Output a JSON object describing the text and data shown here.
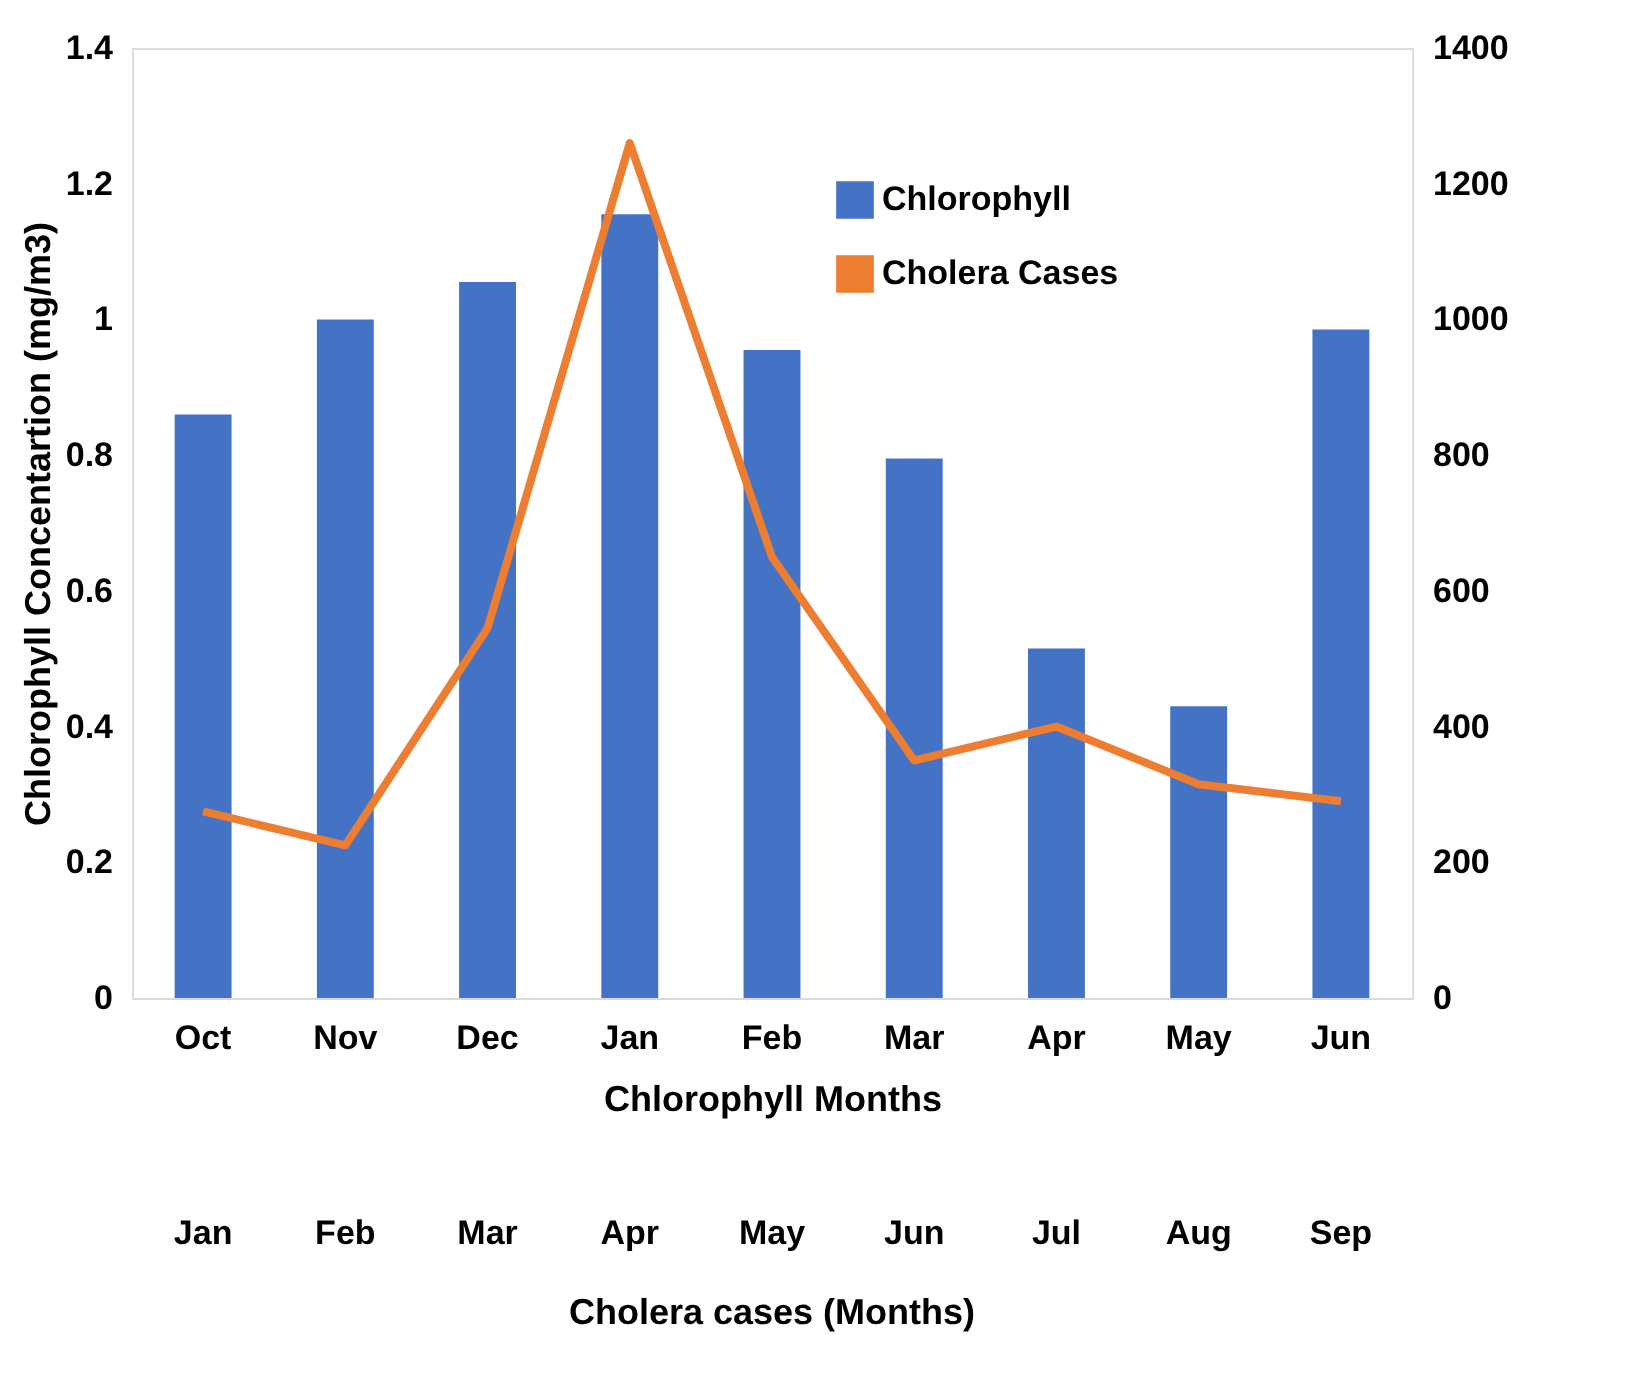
{
  "chart_data": {
    "type": "bar",
    "categories": [
      "Oct",
      "Nov",
      "Dec",
      "Jan",
      "Feb",
      "Mar",
      "Apr",
      "May",
      "Jun"
    ],
    "xlabel": "Chlorophyll Months",
    "ylabel": "Chlorophyll Concentartion (mg/m3)",
    "x2label": "Cholera cases (Months)",
    "annotations": [
      "Jan",
      "Feb",
      "Mar",
      "Apr",
      "May",
      "Jun",
      "Jul",
      "Aug",
      "Sep"
    ],
    "series": [
      {
        "name": "Chlorophyll",
        "color": "#4472c4",
        "values": [
          0.86,
          1.0,
          1.055,
          1.155,
          0.955,
          0.795,
          0.515,
          0.43,
          0.985
        ]
      },
      {
        "name": "Cholera Cases",
        "type": "line",
        "axis": "y2",
        "color": "#ed7d31",
        "values": [
          275,
          225,
          545,
          1260,
          650,
          350,
          400,
          315,
          290
        ]
      }
    ],
    "ylim": [
      0,
      1.4
    ],
    "yticks": [
      0,
      0.2,
      0.4,
      0.6,
      0.8,
      1,
      1.2,
      1.4
    ],
    "y2lim": [
      0,
      1400
    ],
    "y2ticks": [
      0,
      200,
      400,
      600,
      800,
      1000,
      1200,
      1400
    ],
    "grid": false,
    "legend": "top right",
    "marker": "none",
    "line_style": "solid"
  }
}
